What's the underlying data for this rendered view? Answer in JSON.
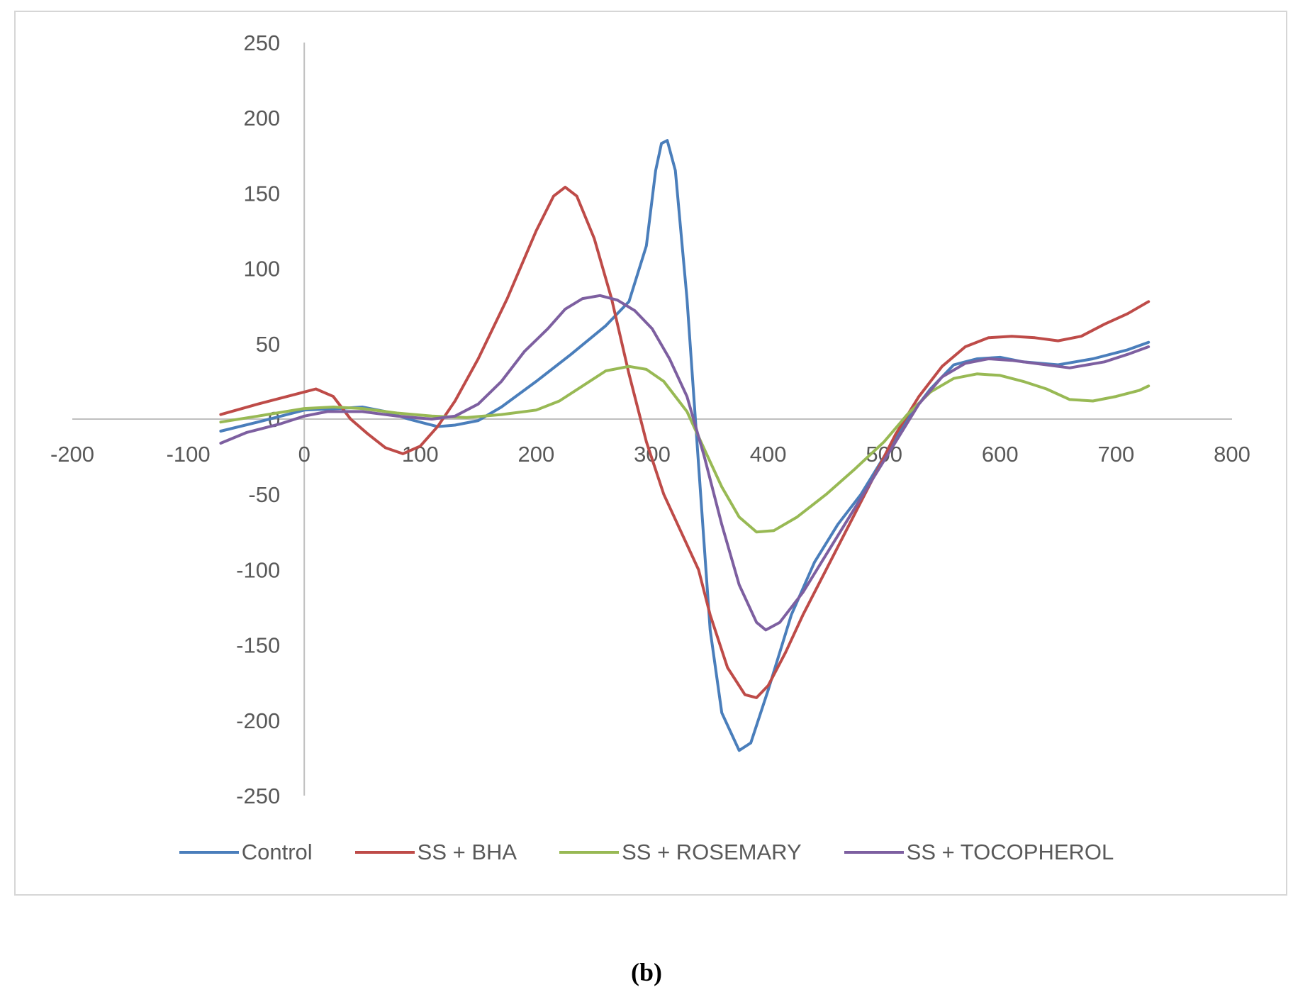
{
  "chart_data": {
    "type": "line",
    "title": "",
    "xlabel": "",
    "ylabel": "",
    "xlim": [
      -200,
      800
    ],
    "ylim": [
      -250,
      250
    ],
    "x_ticks": [
      -200,
      -100,
      0,
      100,
      200,
      300,
      400,
      500,
      600,
      700,
      800
    ],
    "y_ticks": [
      250,
      200,
      150,
      100,
      50,
      0,
      -50,
      -100,
      -150,
      -200,
      -250
    ],
    "grid": false,
    "legend_position": "bottom",
    "series": [
      {
        "name": "Control",
        "color": "#4a7ebb",
        "points": [
          [
            -72,
            -8
          ],
          [
            -40,
            -2
          ],
          [
            0,
            6
          ],
          [
            30,
            7
          ],
          [
            50,
            8
          ],
          [
            70,
            5
          ],
          [
            90,
            0
          ],
          [
            105,
            -3
          ],
          [
            115,
            -5
          ],
          [
            130,
            -4
          ],
          [
            150,
            -1
          ],
          [
            170,
            8
          ],
          [
            200,
            25
          ],
          [
            230,
            43
          ],
          [
            260,
            62
          ],
          [
            280,
            78
          ],
          [
            295,
            115
          ],
          [
            303,
            165
          ],
          [
            308,
            183
          ],
          [
            313,
            185
          ],
          [
            320,
            165
          ],
          [
            330,
            80
          ],
          [
            340,
            -30
          ],
          [
            350,
            -140
          ],
          [
            360,
            -195
          ],
          [
            375,
            -220
          ],
          [
            385,
            -215
          ],
          [
            400,
            -180
          ],
          [
            420,
            -130
          ],
          [
            440,
            -95
          ],
          [
            460,
            -70
          ],
          [
            480,
            -50
          ],
          [
            500,
            -25
          ],
          [
            520,
            0
          ],
          [
            540,
            20
          ],
          [
            560,
            36
          ],
          [
            580,
            40
          ],
          [
            600,
            41
          ],
          [
            620,
            38
          ],
          [
            650,
            36
          ],
          [
            680,
            40
          ],
          [
            710,
            46
          ],
          [
            728,
            51
          ]
        ]
      },
      {
        "name": "SS + BHA",
        "color": "#be4b48",
        "points": [
          [
            -72,
            3
          ],
          [
            -40,
            10
          ],
          [
            0,
            18
          ],
          [
            10,
            20
          ],
          [
            25,
            15
          ],
          [
            40,
            0
          ],
          [
            55,
            -10
          ],
          [
            70,
            -19
          ],
          [
            85,
            -23
          ],
          [
            100,
            -18
          ],
          [
            115,
            -5
          ],
          [
            130,
            12
          ],
          [
            150,
            40
          ],
          [
            175,
            80
          ],
          [
            200,
            125
          ],
          [
            215,
            148
          ],
          [
            225,
            154
          ],
          [
            235,
            148
          ],
          [
            250,
            120
          ],
          [
            265,
            80
          ],
          [
            280,
            30
          ],
          [
            295,
            -15
          ],
          [
            310,
            -50
          ],
          [
            325,
            -75
          ],
          [
            340,
            -100
          ],
          [
            350,
            -130
          ],
          [
            365,
            -165
          ],
          [
            380,
            -183
          ],
          [
            390,
            -185
          ],
          [
            400,
            -177
          ],
          [
            415,
            -155
          ],
          [
            430,
            -130
          ],
          [
            450,
            -100
          ],
          [
            470,
            -70
          ],
          [
            490,
            -40
          ],
          [
            510,
            -10
          ],
          [
            530,
            15
          ],
          [
            550,
            35
          ],
          [
            570,
            48
          ],
          [
            590,
            54
          ],
          [
            610,
            55
          ],
          [
            630,
            54
          ],
          [
            650,
            52
          ],
          [
            670,
            55
          ],
          [
            690,
            63
          ],
          [
            710,
            70
          ],
          [
            728,
            78
          ]
        ]
      },
      {
        "name": "SS + ROSEMARY",
        "color": "#98b954",
        "points": [
          [
            -72,
            -2
          ],
          [
            -40,
            2
          ],
          [
            0,
            7
          ],
          [
            25,
            8
          ],
          [
            50,
            7
          ],
          [
            80,
            4
          ],
          [
            110,
            2
          ],
          [
            140,
            1
          ],
          [
            170,
            3
          ],
          [
            200,
            6
          ],
          [
            220,
            12
          ],
          [
            240,
            22
          ],
          [
            260,
            32
          ],
          [
            280,
            35
          ],
          [
            295,
            33
          ],
          [
            310,
            25
          ],
          [
            330,
            5
          ],
          [
            345,
            -20
          ],
          [
            360,
            -45
          ],
          [
            375,
            -65
          ],
          [
            390,
            -75
          ],
          [
            405,
            -74
          ],
          [
            425,
            -65
          ],
          [
            450,
            -50
          ],
          [
            475,
            -33
          ],
          [
            500,
            -15
          ],
          [
            520,
            3
          ],
          [
            540,
            18
          ],
          [
            560,
            27
          ],
          [
            580,
            30
          ],
          [
            600,
            29
          ],
          [
            620,
            25
          ],
          [
            640,
            20
          ],
          [
            660,
            13
          ],
          [
            680,
            12
          ],
          [
            700,
            15
          ],
          [
            720,
            19
          ],
          [
            728,
            22
          ]
        ]
      },
      {
        "name": "SS + TOCOPHEROL",
        "color": "#7d5fa0",
        "points": [
          [
            -72,
            -16
          ],
          [
            -50,
            -9
          ],
          [
            -20,
            -3
          ],
          [
            0,
            2
          ],
          [
            20,
            5
          ],
          [
            50,
            5
          ],
          [
            80,
            2
          ],
          [
            110,
            0
          ],
          [
            130,
            2
          ],
          [
            150,
            10
          ],
          [
            170,
            25
          ],
          [
            190,
            45
          ],
          [
            210,
            60
          ],
          [
            225,
            73
          ],
          [
            240,
            80
          ],
          [
            255,
            82
          ],
          [
            270,
            79
          ],
          [
            285,
            72
          ],
          [
            300,
            60
          ],
          [
            315,
            40
          ],
          [
            330,
            15
          ],
          [
            345,
            -25
          ],
          [
            360,
            -70
          ],
          [
            375,
            -110
          ],
          [
            390,
            -135
          ],
          [
            398,
            -140
          ],
          [
            410,
            -135
          ],
          [
            430,
            -115
          ],
          [
            450,
            -90
          ],
          [
            470,
            -65
          ],
          [
            490,
            -40
          ],
          [
            510,
            -15
          ],
          [
            530,
            10
          ],
          [
            550,
            28
          ],
          [
            570,
            37
          ],
          [
            590,
            40
          ],
          [
            610,
            39
          ],
          [
            640,
            36
          ],
          [
            660,
            34
          ],
          [
            690,
            38
          ],
          [
            710,
            43
          ],
          [
            728,
            48
          ]
        ]
      }
    ]
  },
  "caption": "(b)"
}
